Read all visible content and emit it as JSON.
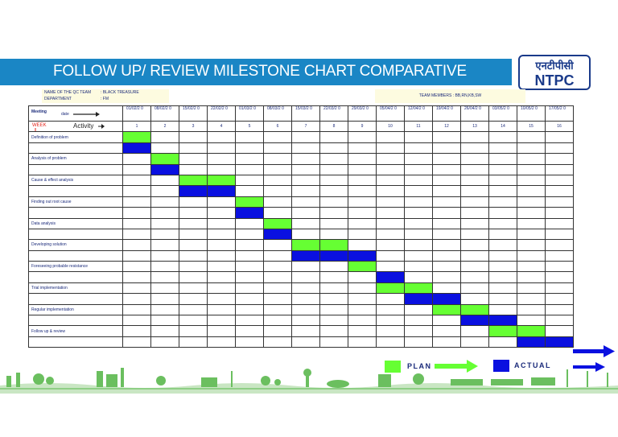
{
  "header": {
    "title": "FOLLOW UP/  REVIEW MILESTONE CHART COMPARATIVE",
    "logo_text": "NTPC",
    "logo_hindi": "एनटीपीसी"
  },
  "info": {
    "team_label": "NAME OF THE QC TEAM",
    "team_value": ": BLACK TREASURE",
    "dept_label": "DEPARTMENT",
    "dept_value": ": FM",
    "members": "TEAM  MEMBERS  :  BB,RN,KB,SW"
  },
  "grid": {
    "meeting_label": "Meeting",
    "date_label": "date",
    "week_label": "WEEK",
    "activity_label": "Activity",
    "dates": [
      "01/02/2 0",
      "08/02/2 0",
      "15/02/2 0",
      "22/02/2 0",
      "01/03/2 0",
      "08/03/2 0",
      "15/03/2 0",
      "22/03/2 0",
      "29/03/2 0",
      "05/04/2 0",
      "12/04/2 0",
      "19/04/2 0",
      "26/04/2 0",
      "03/05/2 0",
      "10/05/2 0",
      "17/05/2 0"
    ],
    "weeks": [
      "1",
      "2",
      "3",
      "4",
      "5",
      "6",
      "7",
      "8",
      "9",
      "10",
      "11",
      "12",
      "13",
      "14",
      "15",
      "16"
    ],
    "activities": [
      {
        "name": "Definition  of problem",
        "plan": [
          1
        ],
        "actual": [
          1
        ]
      },
      {
        "name": "Analysis of problem",
        "plan": [
          2
        ],
        "actual": [
          2
        ]
      },
      {
        "name": "Cause & effect analysis",
        "plan": [
          3,
          4
        ],
        "actual": [
          3,
          4
        ]
      },
      {
        "name": "Finding out root cause",
        "plan": [
          5
        ],
        "actual": [
          5
        ]
      },
      {
        "name": "Data analysis",
        "plan": [
          6
        ],
        "actual": [
          6
        ]
      },
      {
        "name": "Developing solution",
        "plan": [
          7,
          8
        ],
        "actual": [
          7,
          8,
          9
        ]
      },
      {
        "name": "Foreseeing probable resistance",
        "plan": [
          9
        ],
        "actual": [
          10
        ]
      },
      {
        "name": "Trial implementation",
        "plan": [
          10,
          11
        ],
        "actual": [
          11,
          12
        ]
      },
      {
        "name": "Regular implementation",
        "plan": [
          12,
          13
        ],
        "actual": [
          13,
          14
        ]
      },
      {
        "name": "Follow up & review",
        "plan": [
          14,
          15
        ],
        "actual": [
          15,
          16
        ]
      }
    ]
  },
  "legend": {
    "plan_label": "PLAN",
    "actual_label": "ACTUAL",
    "plan_color": "#66ff33",
    "actual_color": "#0a10e0",
    "arrow_color": "#0a10e0"
  },
  "colors": {
    "title_bar": "#1a86c5",
    "info_box": "#fdfbe0",
    "week_text": "#e4251b"
  }
}
